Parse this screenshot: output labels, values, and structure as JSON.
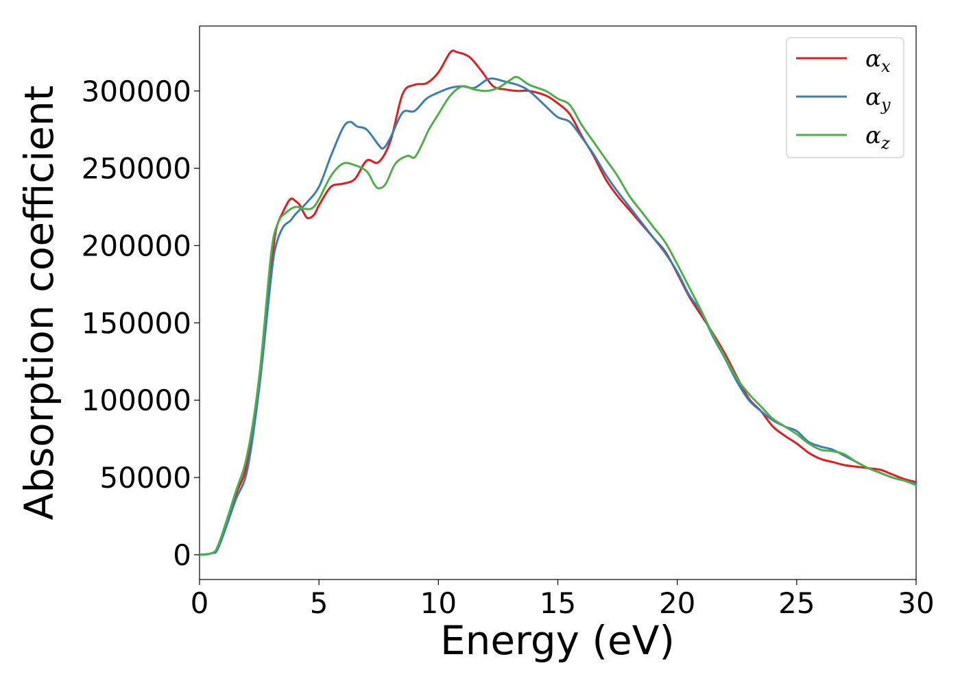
{
  "chart_data": {
    "type": "line",
    "title": "",
    "xlabel": "Energy (eV)",
    "ylabel": "Absorption coefficient",
    "xlim": [
      0,
      30
    ],
    "ylim": [
      -16000,
      342000
    ],
    "xticks": [
      0,
      5,
      10,
      15,
      20,
      25,
      30
    ],
    "yticks": [
      0,
      50000,
      100000,
      150000,
      200000,
      250000,
      300000
    ],
    "grid": false,
    "legend_position": "top-right",
    "series": [
      {
        "name": "α_x",
        "base": "α",
        "sub": "x",
        "color": "#e41a1c",
        "x": [
          0,
          0.5,
          0.8,
          1.5,
          2.0,
          2.5,
          3.0,
          3.2,
          3.5,
          3.8,
          4.0,
          4.2,
          4.5,
          4.8,
          5.0,
          5.5,
          6.0,
          6.5,
          7.0,
          7.5,
          8.0,
          8.5,
          9.0,
          9.5,
          10.0,
          10.5,
          10.8,
          11.3,
          11.8,
          12.3,
          12.8,
          13.3,
          13.8,
          14.5,
          15.0,
          15.5,
          16.0,
          16.5,
          17.0,
          17.5,
          18.0,
          18.5,
          19.0,
          19.5,
          20.0,
          20.5,
          21.0,
          21.5,
          22.0,
          22.5,
          23.0,
          23.5,
          24.0,
          24.5,
          25.0,
          25.5,
          26.0,
          26.5,
          27.0,
          27.5,
          28.0,
          28.5,
          29.0,
          29.5,
          30.0
        ],
        "values": [
          0,
          1000,
          6000,
          38000,
          60000,
          115000,
          185000,
          210000,
          222000,
          230000,
          229000,
          226000,
          218000,
          220000,
          226000,
          238000,
          240000,
          243000,
          255000,
          254000,
          268000,
          298000,
          304000,
          305000,
          312000,
          325000,
          325000,
          322000,
          313000,
          303000,
          301000,
          300000,
          300000,
          297000,
          292000,
          285000,
          271000,
          258000,
          243000,
          232000,
          223000,
          214000,
          205000,
          196000,
          182000,
          167000,
          155000,
          143000,
          130000,
          115000,
          101000,
          93000,
          83000,
          77000,
          72000,
          66000,
          62000,
          60000,
          58000,
          57000,
          56000,
          55000,
          52000,
          49000,
          47000
        ]
      },
      {
        "name": "α_y",
        "base": "α",
        "sub": "y",
        "color": "#377eb8",
        "x": [
          0,
          0.5,
          0.8,
          1.5,
          2.0,
          2.5,
          3.0,
          3.2,
          3.5,
          3.8,
          4.0,
          4.5,
          5.0,
          5.5,
          6.0,
          6.3,
          6.6,
          7.0,
          7.5,
          7.7,
          8.0,
          8.5,
          9.0,
          9.5,
          10.0,
          10.5,
          11.0,
          11.5,
          12.0,
          12.3,
          12.8,
          13.3,
          13.8,
          14.5,
          15.0,
          15.5,
          16.0,
          16.5,
          17.0,
          17.5,
          18.0,
          18.5,
          19.0,
          19.5,
          20.0,
          20.5,
          21.0,
          21.5,
          22.0,
          22.5,
          23.0,
          23.5,
          24.0,
          24.5,
          25.0,
          25.5,
          26.0,
          26.5,
          27.0,
          27.5,
          28.0,
          28.5,
          29.0,
          29.5,
          30.0
        ],
        "values": [
          0,
          1000,
          5000,
          35000,
          55000,
          108000,
          180000,
          200000,
          212000,
          216000,
          220000,
          228000,
          238000,
          258000,
          276000,
          280000,
          277000,
          275000,
          265000,
          263000,
          270000,
          286000,
          287000,
          295000,
          299000,
          302000,
          303000,
          302000,
          307000,
          308000,
          306000,
          304000,
          300000,
          290000,
          283000,
          280000,
          270000,
          259000,
          246000,
          235000,
          225000,
          215000,
          205000,
          195000,
          183000,
          168000,
          157000,
          141000,
          127000,
          112000,
          100000,
          93000,
          87000,
          83000,
          80000,
          73000,
          70000,
          68000,
          64000,
          60000,
          56000,
          53000,
          50000,
          48000,
          46000
        ]
      },
      {
        "name": "α_z",
        "base": "α",
        "sub": "z",
        "color": "#4daf4a",
        "x": [
          0,
          0.5,
          0.8,
          1.5,
          2.0,
          2.5,
          3.0,
          3.3,
          3.6,
          4.0,
          4.3,
          4.7,
          5.0,
          5.5,
          6.0,
          6.5,
          7.0,
          7.3,
          7.5,
          7.8,
          8.2,
          8.7,
          9.0,
          9.3,
          9.6,
          10.0,
          10.5,
          11.0,
          11.5,
          12.0,
          12.5,
          13.0,
          13.3,
          13.8,
          14.5,
          15.0,
          15.5,
          16.0,
          16.5,
          17.0,
          17.5,
          18.0,
          18.5,
          19.0,
          19.5,
          20.0,
          20.5,
          21.0,
          21.5,
          22.0,
          22.5,
          23.0,
          23.5,
          24.0,
          24.5,
          25.0,
          25.5,
          26.0,
          26.5,
          27.0,
          27.5,
          28.0,
          28.5,
          29.0,
          29.5,
          30.0
        ],
        "values": [
          0,
          1000,
          7000,
          40000,
          65000,
          115000,
          195000,
          215000,
          221000,
          225000,
          224000,
          224000,
          230000,
          245000,
          253000,
          252000,
          248000,
          240000,
          237000,
          240000,
          253000,
          258000,
          257000,
          265000,
          275000,
          285000,
          297000,
          303000,
          301000,
          300000,
          302000,
          307000,
          309000,
          304000,
          300000,
          295000,
          291000,
          278000,
          267000,
          256000,
          245000,
          232000,
          222000,
          212000,
          202000,
          188000,
          173000,
          158000,
          142000,
          128000,
          114000,
          104000,
          96000,
          88000,
          83000,
          78000,
          72000,
          68000,
          67000,
          65000,
          60000,
          56000,
          53000,
          50000,
          48000,
          45000
        ]
      }
    ]
  }
}
